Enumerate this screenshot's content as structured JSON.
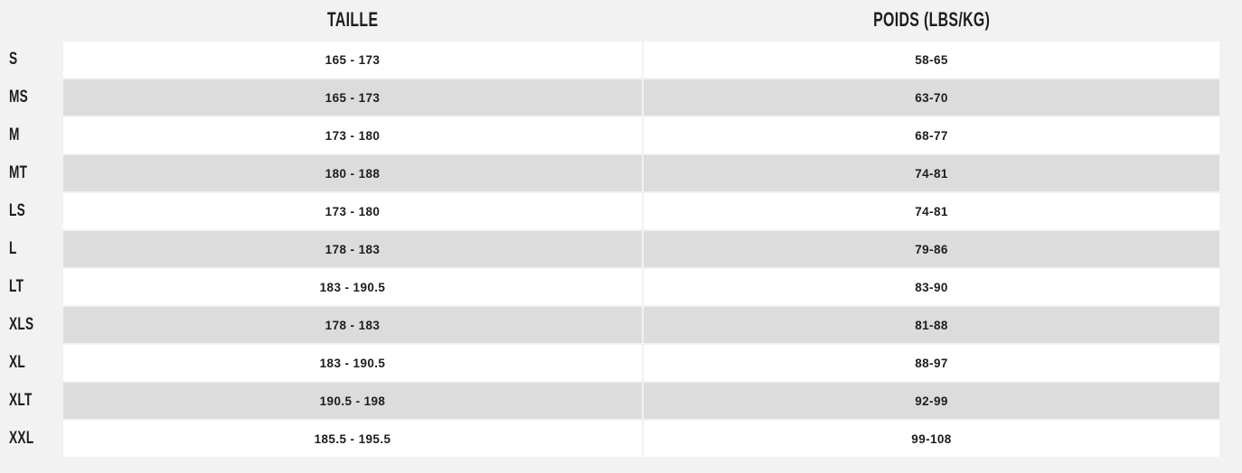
{
  "chart_data": {
    "type": "table",
    "title": "",
    "columns": [
      "",
      "TAILLE",
      "POIDS (LBS/KG)"
    ],
    "rows": [
      [
        "S",
        "165 - 173",
        "58-65"
      ],
      [
        "MS",
        "165 - 173",
        "63-70"
      ],
      [
        "M",
        "173 - 180",
        "68-77"
      ],
      [
        "MT",
        "180 - 188",
        "74-81"
      ],
      [
        "LS",
        "173 - 180",
        "74-81"
      ],
      [
        "L",
        "178 - 183",
        "79-86"
      ],
      [
        "LT",
        "183 - 190.5",
        "83-90"
      ],
      [
        "XLS",
        "178 - 183",
        "81-88"
      ],
      [
        "XL",
        "183 - 190.5",
        "88-97"
      ],
      [
        "XLT",
        "190.5 - 198",
        "92-99"
      ],
      [
        "XXL",
        "185.5 - 195.5",
        "99-108"
      ]
    ]
  },
  "table": {
    "headers": {
      "taille": "TAILLE",
      "poids": "POIDS (LBS/KG)"
    },
    "rows": [
      {
        "size": "S",
        "taille": "165 - 173",
        "poids": "58-65"
      },
      {
        "size": "MS",
        "taille": "165 - 173",
        "poids": "63-70"
      },
      {
        "size": "M",
        "taille": "173 - 180",
        "poids": "68-77"
      },
      {
        "size": "MT",
        "taille": "180 - 188",
        "poids": "74-81"
      },
      {
        "size": "LS",
        "taille": "173 - 180",
        "poids": "74-81"
      },
      {
        "size": "L",
        "taille": "178 - 183",
        "poids": "79-86"
      },
      {
        "size": "LT",
        "taille": "183 - 190.5",
        "poids": "83-90"
      },
      {
        "size": "XLS",
        "taille": "178 - 183",
        "poids": "81-88"
      },
      {
        "size": "XL",
        "taille": "183 - 190.5",
        "poids": "88-97"
      },
      {
        "size": "XLT",
        "taille": "190.5 - 198",
        "poids": "92-99"
      },
      {
        "size": "XXL",
        "taille": "185.5 - 195.5",
        "poids": "99-108"
      }
    ],
    "colors": {
      "page_background": "#f2f2f2",
      "row_white": "#ffffff",
      "row_gray": "#dcdcdc",
      "text": "#1d1d1d"
    }
  }
}
